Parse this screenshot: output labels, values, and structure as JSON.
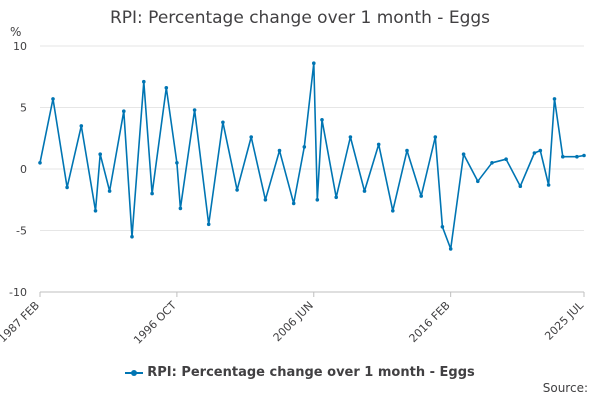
{
  "chart_data": {
    "type": "line",
    "title": "RPI: Percentage change over 1 month - Eggs",
    "ylabel": "%",
    "ylim": [
      -10,
      10
    ],
    "yticks": [
      10,
      5,
      0,
      -5,
      -10
    ],
    "xticks": [
      "1987 FEB",
      "1996 OCT",
      "2006 JUN",
      "2016 FEB",
      "2025 JUL"
    ],
    "grid": true,
    "legend_position": "bottom",
    "series": [
      {
        "name": "RPI: Percentage change over 1 month - Eggs",
        "color": "#0075b3",
        "x": [
          "1987 FEB",
          "1988 JAN",
          "1989 JAN",
          "1990 JAN",
          "1991 JAN",
          "1991 MAY",
          "1992 JAN",
          "1993 JAN",
          "1993 AUG",
          "1994 JUN",
          "1995 JAN",
          "1996 JAN",
          "1996 OCT",
          "1997 JAN",
          "1998 JAN",
          "1999 JAN",
          "2000 JAN",
          "2001 JAN",
          "2002 JAN",
          "2003 JAN",
          "2004 JAN",
          "2005 JAN",
          "2005 OCT",
          "2006 JUN",
          "2006 SEP",
          "2007 JAN",
          "2008 JAN",
          "2009 JAN",
          "2010 JAN",
          "2011 JAN",
          "2012 JAN",
          "2013 JAN",
          "2014 JAN",
          "2015 JAN",
          "2015 JUL",
          "2016 FEB",
          "2017 JAN",
          "2018 JAN",
          "2019 JAN",
          "2020 JAN",
          "2021 JAN",
          "2022 JAN",
          "2022 JUN",
          "2023 JAN",
          "2023 JUN",
          "2024 JAN",
          "2025 JAN",
          "2025 JUL"
        ],
        "values": [
          0.5,
          5.7,
          -1.5,
          3.5,
          -3.4,
          1.2,
          -1.8,
          4.7,
          -5.5,
          7.1,
          -2.0,
          6.6,
          0.5,
          -3.2,
          4.8,
          -4.5,
          3.8,
          -1.7,
          2.6,
          -2.5,
          1.5,
          -2.8,
          1.8,
          8.6,
          -2.5,
          4.0,
          -2.3,
          2.6,
          -1.8,
          2.0,
          -3.4,
          1.5,
          -2.2,
          2.6,
          -4.7,
          -6.5,
          1.2,
          -1.0,
          0.5,
          0.8,
          -1.4,
          1.3,
          1.5,
          -1.3,
          5.7,
          1.0,
          1.0,
          1.1
        ]
      }
    ]
  },
  "source_label": "Source:"
}
